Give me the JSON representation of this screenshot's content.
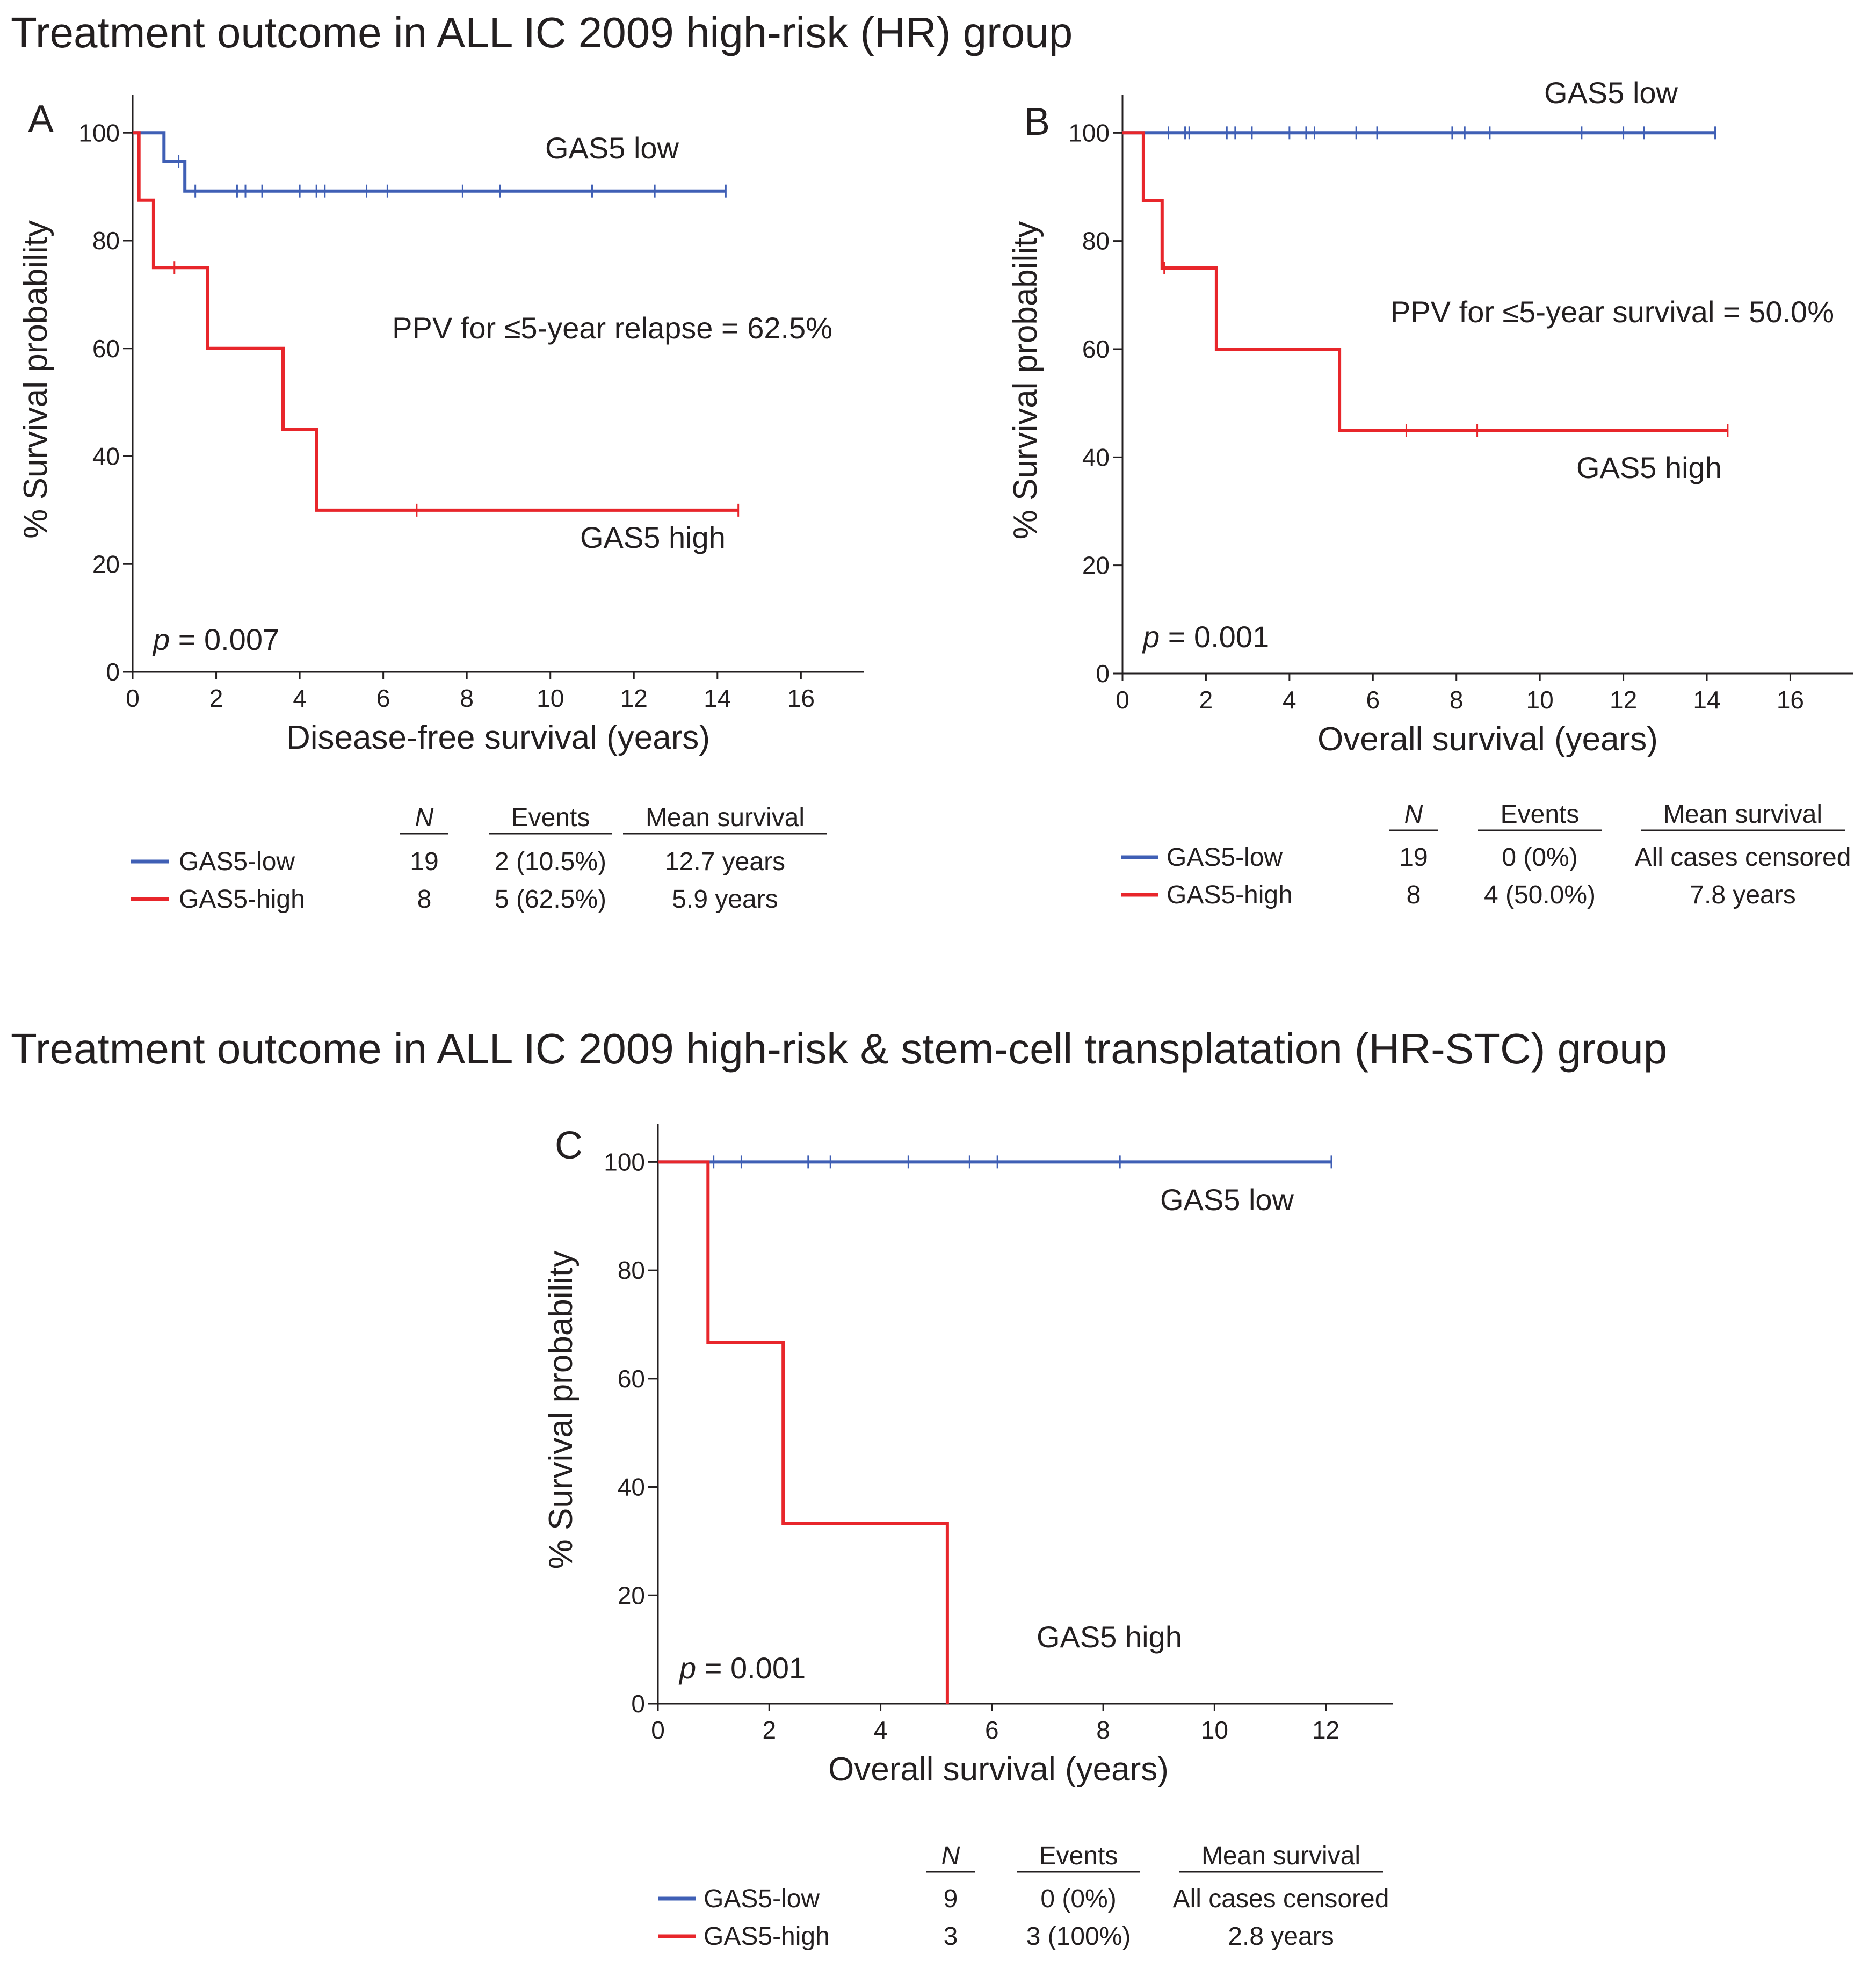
{
  "colors": {
    "low": "#3f5fb5",
    "high": "#e8262b",
    "axis": "#231f20"
  },
  "titles": {
    "hr": "Treatment outcome in ALL IC 2009 high-risk (HR) group",
    "hrstc": "Treatment outcome in ALL IC 2009 high-risk & stem-cell transplatation (HR-STC) group"
  },
  "chart_data": [
    {
      "id": "A",
      "type": "line",
      "letter": "A",
      "xlabel": "Disease-free survival (years)",
      "ylabel": "% Survival probability",
      "xlim": [
        0,
        17.5
      ],
      "ylim": [
        0,
        100
      ],
      "xticks": [
        0,
        2,
        4,
        6,
        8,
        10,
        12,
        14,
        16
      ],
      "yticks": [
        0,
        20,
        40,
        60,
        80,
        100
      ],
      "annotation": "PPV for ≤5-year relapse = 62.5%",
      "p_label": "p",
      "p_value": " = 0.007",
      "series": [
        {
          "key": "low",
          "name": "GAS5 low",
          "steps": [
            [
              0,
              100
            ],
            [
              0.75,
              100
            ],
            [
              0.75,
              94.7
            ],
            [
              1.25,
              94.7
            ],
            [
              1.25,
              89.2
            ],
            [
              14.2,
              89.2
            ]
          ],
          "censored": [
            [
              1.1,
              94.7
            ],
            [
              1.5,
              89.2
            ],
            [
              2.5,
              89.2
            ],
            [
              2.7,
              89.2
            ],
            [
              3.1,
              89.2
            ],
            [
              4.0,
              89.2
            ],
            [
              4.4,
              89.2
            ],
            [
              4.6,
              89.2
            ],
            [
              5.6,
              89.2
            ],
            [
              6.1,
              89.2
            ],
            [
              7.9,
              89.2
            ],
            [
              8.8,
              89.2
            ],
            [
              11.0,
              89.2
            ],
            [
              12.5,
              89.2
            ],
            [
              14.2,
              89.2
            ]
          ]
        },
        {
          "key": "high",
          "name": "GAS5 high",
          "steps": [
            [
              0,
              100
            ],
            [
              0.15,
              100
            ],
            [
              0.15,
              87.5
            ],
            [
              0.5,
              87.5
            ],
            [
              0.5,
              75
            ],
            [
              1.8,
              75
            ],
            [
              1.8,
              60
            ],
            [
              3.6,
              60
            ],
            [
              3.6,
              45
            ],
            [
              4.4,
              45
            ],
            [
              4.4,
              30
            ],
            [
              14.5,
              30
            ]
          ],
          "censored": [
            [
              1.0,
              75
            ],
            [
              6.8,
              30
            ],
            [
              14.5,
              30
            ]
          ]
        }
      ],
      "table": {
        "headers": {
          "n": "N",
          "events": "Events",
          "mean": "Mean survival"
        },
        "rows": [
          {
            "key": "low",
            "label": "GAS5-low",
            "n": "19",
            "events": "2 (10.5%)",
            "mean": "12.7 years"
          },
          {
            "key": "high",
            "label": "GAS5-high",
            "n": "8",
            "events": "5 (62.5%)",
            "mean": "5.9 years"
          }
        ]
      }
    },
    {
      "id": "B",
      "type": "line",
      "letter": "B",
      "xlabel": "Overall survival (years)",
      "ylabel": "% Survival probability",
      "xlim": [
        0,
        17.5
      ],
      "ylim": [
        0,
        100
      ],
      "xticks": [
        0,
        2,
        4,
        6,
        8,
        10,
        12,
        14,
        16
      ],
      "yticks": [
        0,
        20,
        40,
        60,
        80,
        100
      ],
      "annotation": "PPV for ≤5-year survival = 50.0%",
      "p_label": "p",
      "p_value": " = 0.001",
      "series": [
        {
          "key": "low",
          "name": "GAS5 low",
          "steps": [
            [
              0,
              100
            ],
            [
              14.2,
              100
            ]
          ],
          "censored": [
            [
              1.1,
              100
            ],
            [
              1.5,
              100
            ],
            [
              1.6,
              100
            ],
            [
              2.5,
              100
            ],
            [
              2.7,
              100
            ],
            [
              3.1,
              100
            ],
            [
              4.0,
              100
            ],
            [
              4.4,
              100
            ],
            [
              4.6,
              100
            ],
            [
              5.6,
              100
            ],
            [
              6.1,
              100
            ],
            [
              7.9,
              100
            ],
            [
              8.2,
              100
            ],
            [
              8.8,
              100
            ],
            [
              11.0,
              100
            ],
            [
              12.0,
              100
            ],
            [
              12.5,
              100
            ],
            [
              14.2,
              100
            ]
          ]
        },
        {
          "key": "high",
          "name": "GAS5 high",
          "steps": [
            [
              0,
              100
            ],
            [
              0.5,
              100
            ],
            [
              0.5,
              87.5
            ],
            [
              0.95,
              87.5
            ],
            [
              0.95,
              75
            ],
            [
              2.25,
              75
            ],
            [
              2.25,
              60
            ],
            [
              5.2,
              60
            ],
            [
              5.2,
              45
            ],
            [
              14.5,
              45
            ]
          ],
          "censored": [
            [
              1.0,
              75
            ],
            [
              6.8,
              45
            ],
            [
              8.5,
              45
            ],
            [
              14.5,
              45
            ]
          ]
        }
      ],
      "table": {
        "headers": {
          "n": "N",
          "events": "Events",
          "mean": "Mean survival"
        },
        "rows": [
          {
            "key": "low",
            "label": "GAS5-low",
            "n": "19",
            "events": "0 (0%)",
            "mean": "All cases censored"
          },
          {
            "key": "high",
            "label": "GAS5-high",
            "n": "8",
            "events": "4 (50.0%)",
            "mean": "7.8 years"
          }
        ]
      }
    },
    {
      "id": "C",
      "type": "line",
      "letter": "C",
      "xlabel": "Overall survival (years)",
      "ylabel": "% Survival probability",
      "xlim": [
        0,
        13.2
      ],
      "ylim": [
        0,
        100
      ],
      "xticks": [
        0,
        2,
        4,
        6,
        8,
        10,
        12
      ],
      "yticks": [
        0,
        20,
        40,
        60,
        80,
        100
      ],
      "annotation": "",
      "p_label": "p",
      "p_value": " = 0.001",
      "series": [
        {
          "key": "low",
          "name": "GAS5 low",
          "steps": [
            [
              0,
              100
            ],
            [
              12.1,
              100
            ]
          ],
          "censored": [
            [
              1.0,
              100
            ],
            [
              1.5,
              100
            ],
            [
              2.7,
              100
            ],
            [
              3.1,
              100
            ],
            [
              4.5,
              100
            ],
            [
              5.6,
              100
            ],
            [
              6.1,
              100
            ],
            [
              8.3,
              100
            ],
            [
              12.1,
              100
            ]
          ]
        },
        {
          "key": "high",
          "name": "GAS5 high",
          "steps": [
            [
              0,
              100
            ],
            [
              0.9,
              100
            ],
            [
              0.9,
              66.7
            ],
            [
              2.25,
              66.7
            ],
            [
              2.25,
              33.3
            ],
            [
              5.2,
              33.3
            ],
            [
              5.2,
              0
            ]
          ],
          "censored": []
        }
      ],
      "table": {
        "headers": {
          "n": "N",
          "events": "Events",
          "mean": "Mean survival"
        },
        "rows": [
          {
            "key": "low",
            "label": "GAS5-low",
            "n": "9",
            "events": "0 (0%)",
            "mean": "All cases censored"
          },
          {
            "key": "high",
            "label": "GAS5-high",
            "n": "3",
            "events": "3 (100%)",
            "mean": "2.8 years"
          }
        ]
      }
    }
  ]
}
